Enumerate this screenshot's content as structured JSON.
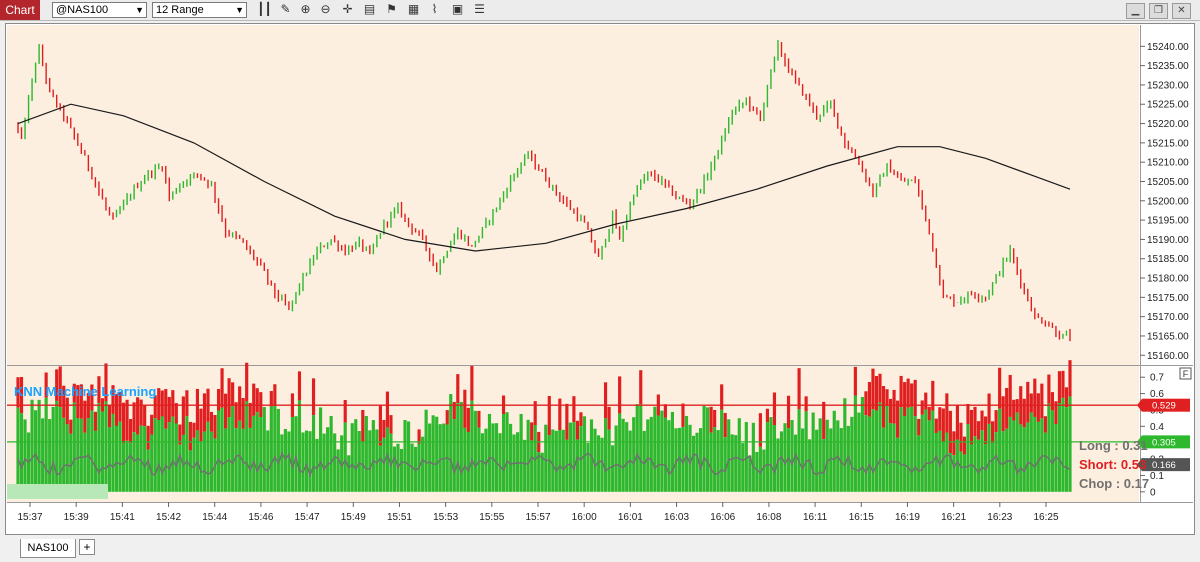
{
  "toolbar": {
    "chart_label": "Chart",
    "symbol_value": "@NAS100",
    "interval_value": "12 Range",
    "tool_icons": [
      "bar-style-icon",
      "pencil-icon",
      "zoom-in-icon",
      "zoom-out-icon",
      "crosshair-icon",
      "data-box-icon",
      "flag-icon",
      "chart-type-icon",
      "analysis-icon",
      "format-icon"
    ],
    "window_icons": [
      "minimize-icon",
      "restore-icon",
      "close-icon"
    ]
  },
  "tabs": {
    "active": "NAS100",
    "add_label": "+"
  },
  "colors": {
    "background": "#fdefe0",
    "up_bar": "#2db82d",
    "down_bar": "#e02020",
    "ma_line": "#1a1a1a",
    "indicator_title": "#1aa3ff",
    "short_level": "#e02020",
    "long_level": "#2db82d",
    "chop_line": "#707070"
  },
  "chart_data": [
    {
      "type": "candlestick",
      "title": "",
      "ylim": [
        15158,
        15245
      ],
      "ytick_labels": [
        "15160.00",
        "15165.00",
        "15170.00",
        "15175.00",
        "15180.00",
        "15185.00",
        "15190.00",
        "15195.00",
        "15200.00",
        "15205.00",
        "15210.00",
        "15215.00",
        "15220.00",
        "15225.00",
        "15230.00",
        "15235.00",
        "15240.00"
      ],
      "x_labels": [
        "15:37",
        "15:39",
        "15:41",
        "15:42",
        "15:44",
        "15:46",
        "15:47",
        "15:49",
        "15:51",
        "15:53",
        "15:55",
        "15:57",
        "16:00",
        "16:01",
        "16:03",
        "16:06",
        "16:08",
        "16:11",
        "16:15",
        "16:19",
        "16:21",
        "16:23",
        "16:25"
      ],
      "price_path": [
        [
          0,
          15220
        ],
        [
          2,
          15216
        ],
        [
          6,
          15236
        ],
        [
          7,
          15239
        ],
        [
          10,
          15228
        ],
        [
          14,
          15222
        ],
        [
          20,
          15211
        ],
        [
          26,
          15198
        ],
        [
          28,
          15195
        ],
        [
          34,
          15203
        ],
        [
          38,
          15207
        ],
        [
          42,
          15209
        ],
        [
          44,
          15201
        ],
        [
          48,
          15205
        ],
        [
          52,
          15207
        ],
        [
          56,
          15204
        ],
        [
          60,
          15192
        ],
        [
          64,
          15190
        ],
        [
          70,
          15183
        ],
        [
          74,
          15176
        ],
        [
          78,
          15172
        ],
        [
          82,
          15180
        ],
        [
          86,
          15187
        ],
        [
          90,
          15190
        ],
        [
          94,
          15187
        ],
        [
          98,
          15189
        ],
        [
          101,
          15186
        ],
        [
          105,
          15194
        ],
        [
          109,
          15198
        ],
        [
          112,
          15194
        ],
        [
          116,
          15190
        ],
        [
          120,
          15182
        ],
        [
          122,
          15186
        ],
        [
          126,
          15192
        ],
        [
          130,
          15188
        ],
        [
          134,
          15194
        ],
        [
          138,
          15200
        ],
        [
          142,
          15207
        ],
        [
          146,
          15212
        ],
        [
          150,
          15207
        ],
        [
          154,
          15202
        ],
        [
          158,
          15198
        ],
        [
          162,
          15194
        ],
        [
          166,
          15185
        ],
        [
          170,
          15196
        ],
        [
          172,
          15190
        ],
        [
          176,
          15202
        ],
        [
          180,
          15207
        ],
        [
          184,
          15205
        ],
        [
          188,
          15201
        ],
        [
          192,
          15199
        ],
        [
          196,
          15205
        ],
        [
          200,
          15213
        ],
        [
          204,
          15223
        ],
        [
          208,
          15226
        ],
        [
          212,
          15221
        ],
        [
          214,
          15230
        ],
        [
          217,
          15240
        ],
        [
          220,
          15234
        ],
        [
          224,
          15228
        ],
        [
          228,
          15222
        ],
        [
          232,
          15225
        ],
        [
          236,
          15215
        ],
        [
          240,
          15210
        ],
        [
          244,
          15202
        ],
        [
          248,
          15209
        ],
        [
          252,
          15205
        ],
        [
          256,
          15205
        ],
        [
          260,
          15192
        ],
        [
          264,
          15175
        ],
        [
          268,
          15174
        ],
        [
          272,
          15176
        ],
        [
          276,
          15175
        ],
        [
          280,
          15182
        ],
        [
          283,
          15187
        ],
        [
          286,
          15179
        ],
        [
          290,
          15170
        ],
        [
          294,
          15168
        ],
        [
          297,
          15165
        ]
      ],
      "ma_path": [
        [
          0,
          15220
        ],
        [
          15,
          15225
        ],
        [
          30,
          15222
        ],
        [
          50,
          15215
        ],
        [
          70,
          15205
        ],
        [
          90,
          15196
        ],
        [
          110,
          15190
        ],
        [
          130,
          15187
        ],
        [
          150,
          15189
        ],
        [
          170,
          15194
        ],
        [
          190,
          15198
        ],
        [
          210,
          15203
        ],
        [
          230,
          15209
        ],
        [
          250,
          15214
        ],
        [
          262,
          15214
        ],
        [
          275,
          15211
        ],
        [
          290,
          15206
        ],
        [
          300,
          15203
        ]
      ],
      "n_bars": 300
    },
    {
      "type": "bar",
      "title": "KNN Machine Learning",
      "ylim": [
        -0.05,
        0.75
      ],
      "ytick_labels": [
        "0",
        "0.1",
        "0.2",
        "0.3",
        "0.4",
        "0.5",
        "0.6",
        "0.7"
      ],
      "series": [
        {
          "name": "Long",
          "value": 0.31,
          "label": "Long : 0.31"
        },
        {
          "name": "Short",
          "value": 0.53,
          "label": "Short: 0.53"
        },
        {
          "name": "Chop",
          "value": 0.17,
          "label": "Chop : 0.17"
        }
      ],
      "levels": [
        {
          "value": 0.529,
          "label": "0.529"
        },
        {
          "value": 0.305,
          "label": "0.305"
        },
        {
          "value": 0.166,
          "label": "0.166"
        }
      ],
      "corner_badge": "F"
    }
  ]
}
